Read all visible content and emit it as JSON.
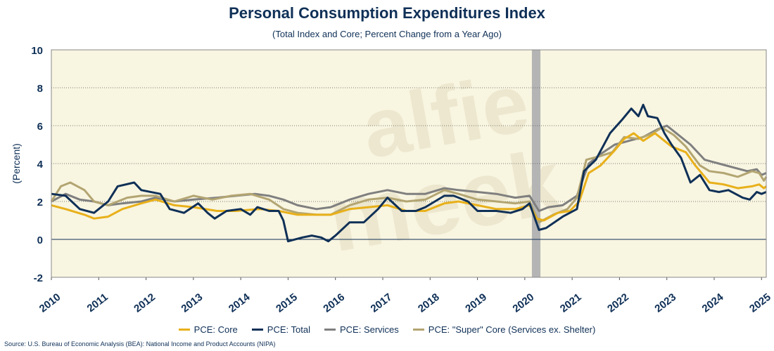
{
  "title": "Personal Consumption Expenditures Index",
  "subtitle": "(Total Index and Core; Percent Change from a Year Ago)",
  "source": "Source: U.S. Bureau of Economic Analysis (BEA): National Income and Product Accounts (NIPA)",
  "watermark": "alfie meek",
  "colors": {
    "background": "#f8f5e1",
    "recession": "#b4b4b4",
    "core": "#e8b01a",
    "total": "#0f3057",
    "services": "#7f7f7f",
    "supercore": "#b3a572",
    "title": "#0f3057"
  },
  "chart_data": {
    "type": "line",
    "ylabel": "(Percent)",
    "xlabel": "",
    "ylim": [
      -2,
      10
    ],
    "xlim": [
      2010,
      2025.1
    ],
    "yticks": [
      "-2",
      "0",
      "2",
      "4",
      "6",
      "8",
      "10"
    ],
    "xticks": [
      "2010",
      "2011",
      "2012",
      "2013",
      "2014",
      "2015",
      "2016",
      "2017",
      "2018",
      "2019",
      "2020",
      "2021",
      "2022",
      "2023",
      "2024",
      "2025"
    ],
    "grid": "horizontal dotted",
    "legend": "bottom",
    "recession_shading": [
      2020.15,
      2020.33
    ],
    "series": [
      {
        "name": "PCE: Core",
        "color": "#e8b01a",
        "points": [
          [
            2010,
            1.8
          ],
          [
            2010.3,
            1.6
          ],
          [
            2010.7,
            1.3
          ],
          [
            2010.9,
            1.1
          ],
          [
            2011.2,
            1.2
          ],
          [
            2011.5,
            1.6
          ],
          [
            2011.9,
            1.9
          ],
          [
            2012.2,
            2.1
          ],
          [
            2012.6,
            1.8
          ],
          [
            2013,
            1.7
          ],
          [
            2013.5,
            1.5
          ],
          [
            2013.9,
            1.5
          ],
          [
            2014.4,
            1.6
          ],
          [
            2014.8,
            1.5
          ],
          [
            2015.2,
            1.3
          ],
          [
            2015.6,
            1.3
          ],
          [
            2015.9,
            1.3
          ],
          [
            2016.3,
            1.6
          ],
          [
            2016.7,
            1.7
          ],
          [
            2017.1,
            1.8
          ],
          [
            2017.5,
            1.5
          ],
          [
            2017.9,
            1.5
          ],
          [
            2018.3,
            1.9
          ],
          [
            2018.6,
            2.0
          ],
          [
            2019,
            1.8
          ],
          [
            2019.4,
            1.6
          ],
          [
            2019.8,
            1.6
          ],
          [
            2020.1,
            1.8
          ],
          [
            2020.25,
            1.1
          ],
          [
            2020.4,
            1.0
          ],
          [
            2020.7,
            1.4
          ],
          [
            2020.95,
            1.5
          ],
          [
            2021.15,
            2.0
          ],
          [
            2021.35,
            3.5
          ],
          [
            2021.6,
            3.9
          ],
          [
            2021.9,
            4.7
          ],
          [
            2022.1,
            5.3
          ],
          [
            2022.3,
            5.6
          ],
          [
            2022.5,
            5.2
          ],
          [
            2022.75,
            5.6
          ],
          [
            2022.9,
            5.3
          ],
          [
            2023.1,
            4.9
          ],
          [
            2023.4,
            4.6
          ],
          [
            2023.6,
            3.9
          ],
          [
            2023.9,
            3.0
          ],
          [
            2024.2,
            2.9
          ],
          [
            2024.5,
            2.7
          ],
          [
            2024.8,
            2.8
          ],
          [
            2024.95,
            2.9
          ],
          [
            2025.05,
            2.7
          ],
          [
            2025.1,
            2.8
          ]
        ]
      },
      {
        "name": "PCE: Total",
        "color": "#0f3057",
        "points": [
          [
            2010,
            2.4
          ],
          [
            2010.3,
            2.3
          ],
          [
            2010.6,
            1.6
          ],
          [
            2010.9,
            1.4
          ],
          [
            2011.2,
            2.0
          ],
          [
            2011.4,
            2.8
          ],
          [
            2011.75,
            3.0
          ],
          [
            2011.9,
            2.6
          ],
          [
            2012.3,
            2.4
          ],
          [
            2012.5,
            1.6
          ],
          [
            2012.8,
            1.4
          ],
          [
            2013.1,
            1.9
          ],
          [
            2013.3,
            1.4
          ],
          [
            2013.45,
            1.1
          ],
          [
            2013.7,
            1.5
          ],
          [
            2014,
            1.6
          ],
          [
            2014.2,
            1.3
          ],
          [
            2014.35,
            1.7
          ],
          [
            2014.6,
            1.5
          ],
          [
            2014.8,
            1.5
          ],
          [
            2014.9,
            1.0
          ],
          [
            2015,
            -0.1
          ],
          [
            2015.3,
            0.1
          ],
          [
            2015.5,
            0.2
          ],
          [
            2015.7,
            0.1
          ],
          [
            2015.85,
            -0.1
          ],
          [
            2016,
            0.2
          ],
          [
            2016.3,
            0.9
          ],
          [
            2016.6,
            0.9
          ],
          [
            2016.9,
            1.6
          ],
          [
            2017.1,
            2.2
          ],
          [
            2017.4,
            1.5
          ],
          [
            2017.7,
            1.5
          ],
          [
            2017.9,
            1.7
          ],
          [
            2018.3,
            2.3
          ],
          [
            2018.5,
            2.3
          ],
          [
            2018.8,
            2.0
          ],
          [
            2019,
            1.5
          ],
          [
            2019.4,
            1.5
          ],
          [
            2019.7,
            1.4
          ],
          [
            2019.95,
            1.6
          ],
          [
            2020.1,
            1.9
          ],
          [
            2020.3,
            0.5
          ],
          [
            2020.45,
            0.6
          ],
          [
            2020.8,
            1.2
          ],
          [
            2021.1,
            1.6
          ],
          [
            2021.25,
            3.6
          ],
          [
            2021.5,
            4.2
          ],
          [
            2021.8,
            5.6
          ],
          [
            2022.05,
            6.3
          ],
          [
            2022.25,
            6.9
          ],
          [
            2022.4,
            6.5
          ],
          [
            2022.5,
            7.1
          ],
          [
            2022.6,
            6.5
          ],
          [
            2022.8,
            6.4
          ],
          [
            2022.95,
            5.6
          ],
          [
            2023.1,
            5.0
          ],
          [
            2023.3,
            4.3
          ],
          [
            2023.5,
            3.0
          ],
          [
            2023.7,
            3.4
          ],
          [
            2023.9,
            2.6
          ],
          [
            2024.1,
            2.5
          ],
          [
            2024.3,
            2.6
          ],
          [
            2024.6,
            2.2
          ],
          [
            2024.75,
            2.1
          ],
          [
            2024.9,
            2.5
          ],
          [
            2025.0,
            2.4
          ],
          [
            2025.1,
            2.5
          ]
        ]
      },
      {
        "name": "PCE: Services",
        "color": "#7f7f7f",
        "points": [
          [
            2010,
            2.0
          ],
          [
            2010.3,
            2.4
          ],
          [
            2010.6,
            2.1
          ],
          [
            2010.9,
            2.0
          ],
          [
            2011.2,
            1.8
          ],
          [
            2011.5,
            1.9
          ],
          [
            2011.9,
            2.0
          ],
          [
            2012.2,
            2.2
          ],
          [
            2012.6,
            2.0
          ],
          [
            2013,
            2.1
          ],
          [
            2013.5,
            2.2
          ],
          [
            2013.9,
            2.3
          ],
          [
            2014.3,
            2.4
          ],
          [
            2014.6,
            2.3
          ],
          [
            2014.9,
            2.1
          ],
          [
            2015.2,
            1.8
          ],
          [
            2015.6,
            1.6
          ],
          [
            2015.9,
            1.7
          ],
          [
            2016.3,
            2.1
          ],
          [
            2016.7,
            2.4
          ],
          [
            2017.1,
            2.6
          ],
          [
            2017.5,
            2.4
          ],
          [
            2017.9,
            2.4
          ],
          [
            2018.3,
            2.7
          ],
          [
            2018.6,
            2.6
          ],
          [
            2019,
            2.5
          ],
          [
            2019.4,
            2.4
          ],
          [
            2019.8,
            2.2
          ],
          [
            2020.1,
            2.3
          ],
          [
            2020.3,
            1.5
          ],
          [
            2020.5,
            1.7
          ],
          [
            2020.8,
            1.8
          ],
          [
            2021.1,
            2.3
          ],
          [
            2021.35,
            4.0
          ],
          [
            2021.6,
            4.5
          ],
          [
            2021.9,
            5.0
          ],
          [
            2022.2,
            5.2
          ],
          [
            2022.5,
            5.4
          ],
          [
            2022.8,
            5.8
          ],
          [
            2023.0,
            6.0
          ],
          [
            2023.2,
            5.6
          ],
          [
            2023.5,
            5.0
          ],
          [
            2023.8,
            4.2
          ],
          [
            2024.1,
            4.0
          ],
          [
            2024.4,
            3.8
          ],
          [
            2024.7,
            3.6
          ],
          [
            2024.9,
            3.7
          ],
          [
            2025.0,
            3.4
          ],
          [
            2025.1,
            3.5
          ]
        ]
      },
      {
        "name": "PCE: \"Super\" Core (Services ex. Shelter)",
        "color": "#b3a572",
        "points": [
          [
            2010,
            2.0
          ],
          [
            2010.2,
            2.8
          ],
          [
            2010.4,
            3.0
          ],
          [
            2010.7,
            2.6
          ],
          [
            2010.9,
            2.0
          ],
          [
            2011.2,
            1.8
          ],
          [
            2011.6,
            2.2
          ],
          [
            2011.9,
            2.3
          ],
          [
            2012.2,
            2.3
          ],
          [
            2012.6,
            2.0
          ],
          [
            2013,
            2.3
          ],
          [
            2013.4,
            2.1
          ],
          [
            2013.8,
            2.3
          ],
          [
            2014.2,
            2.4
          ],
          [
            2014.6,
            2.1
          ],
          [
            2014.9,
            1.6
          ],
          [
            2015.2,
            1.4
          ],
          [
            2015.6,
            1.3
          ],
          [
            2015.9,
            1.3
          ],
          [
            2016.3,
            1.8
          ],
          [
            2016.7,
            2.1
          ],
          [
            2017.1,
            2.2
          ],
          [
            2017.5,
            2.0
          ],
          [
            2017.9,
            2.1
          ],
          [
            2018.3,
            2.6
          ],
          [
            2018.6,
            2.4
          ],
          [
            2019,
            2.1
          ],
          [
            2019.4,
            2.0
          ],
          [
            2019.8,
            1.9
          ],
          [
            2020.1,
            2.0
          ],
          [
            2020.3,
            0.9
          ],
          [
            2020.6,
            1.3
          ],
          [
            2020.9,
            1.6
          ],
          [
            2021.1,
            2.2
          ],
          [
            2021.3,
            4.2
          ],
          [
            2021.6,
            4.4
          ],
          [
            2021.85,
            4.6
          ],
          [
            2022.1,
            5.4
          ],
          [
            2022.4,
            5.3
          ],
          [
            2022.7,
            5.6
          ],
          [
            2022.9,
            5.9
          ],
          [
            2023.15,
            5.5
          ],
          [
            2023.4,
            4.9
          ],
          [
            2023.7,
            3.9
          ],
          [
            2023.9,
            3.6
          ],
          [
            2024.2,
            3.5
          ],
          [
            2024.5,
            3.3
          ],
          [
            2024.8,
            3.6
          ],
          [
            2024.95,
            3.5
          ],
          [
            2025.05,
            3.1
          ],
          [
            2025.1,
            3.3
          ]
        ]
      }
    ]
  }
}
